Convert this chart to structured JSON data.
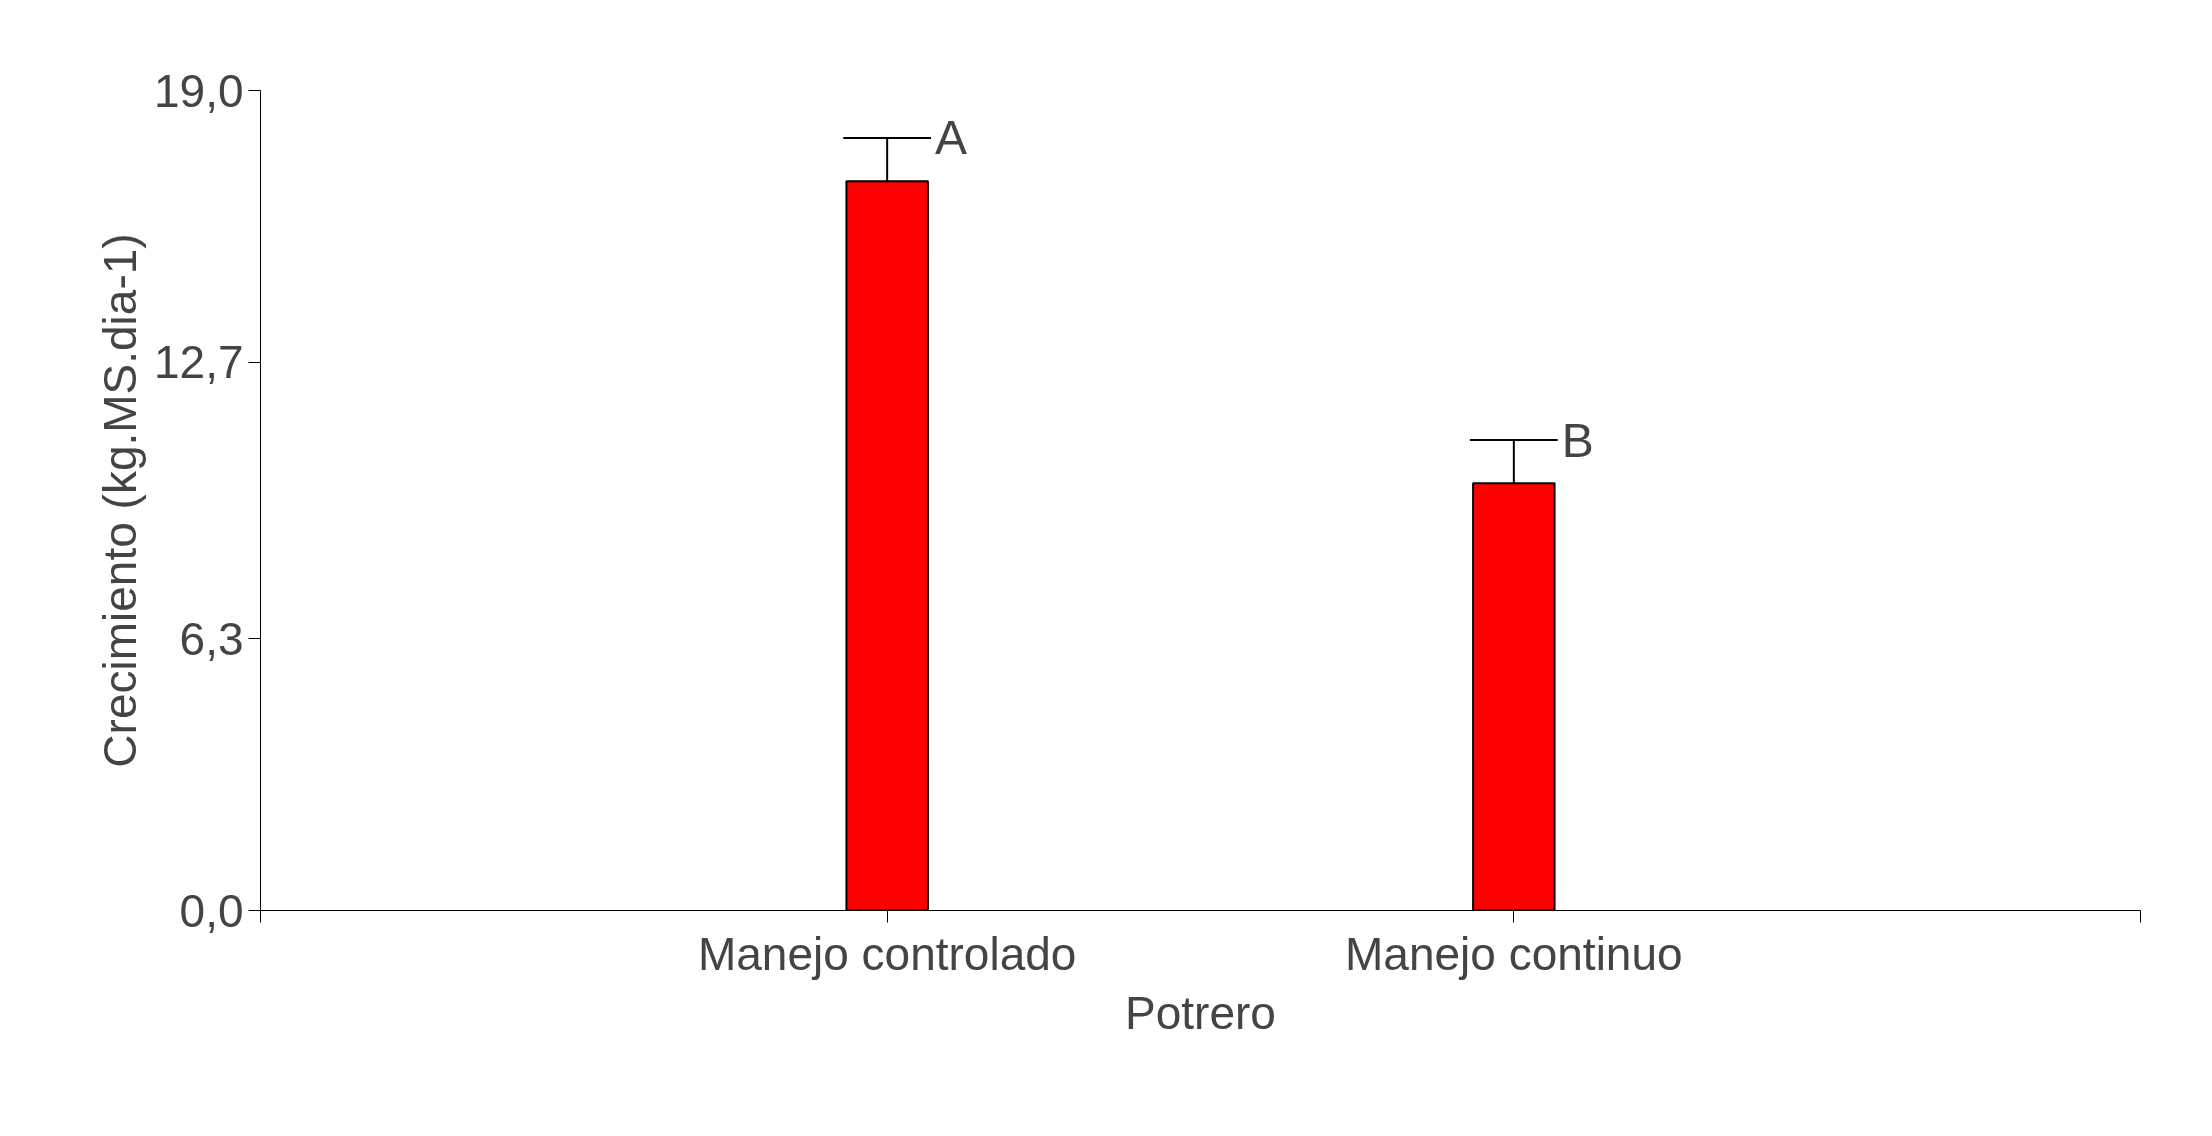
{
  "chart_data": {
    "type": "bar",
    "xlabel": "Potrero",
    "ylabel": "Crecimiento (kg.MS.dia-1)",
    "categories": [
      "Manejo controlado",
      "Manejo continuo"
    ],
    "values": [
      16.9,
      9.9
    ],
    "errors": [
      [
        16.9,
        17.9
      ],
      [
        9.9,
        10.9
      ]
    ],
    "color": "#ff0000",
    "ylim": [
      0,
      19
    ],
    "yticks": [
      {
        "value": 0,
        "label": "0,0"
      },
      {
        "value": 6.3,
        "label": "6,3"
      },
      {
        "value": 12.7,
        "label": "12,7"
      },
      {
        "value": 19,
        "label": "19,0"
      }
    ],
    "annotations": [
      {
        "text": "A",
        "x": "Manejo controlado",
        "y": 17.9
      },
      {
        "text": "B",
        "x": "Manejo continuo",
        "y": 10.9
      }
    ],
    "grid": false
  }
}
